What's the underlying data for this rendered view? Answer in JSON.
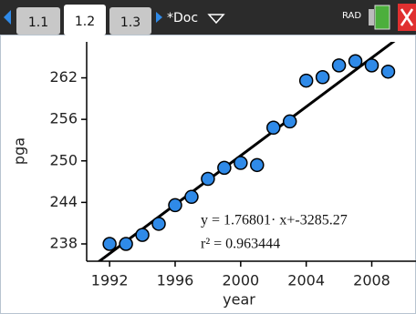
{
  "tabs": [
    "1.1",
    "1.2",
    "1.3"
  ],
  "document": "*Doc",
  "mode": "RAD",
  "chart_data": {
    "type": "scatter",
    "x_label": "year",
    "y_label": "pga",
    "x": [
      1992,
      1993,
      1994,
      1995,
      1996,
      1997,
      1998,
      1999,
      2000,
      2001,
      2002,
      2003,
      2004,
      2005,
      2006,
      2007,
      2008,
      2009
    ],
    "y": [
      238.0,
      238.0,
      239.3,
      240.9,
      243.6,
      244.8,
      247.4,
      249.0,
      249.7,
      249.4,
      254.8,
      255.7,
      261.6,
      262.1,
      263.8,
      264.4,
      263.8,
      262.9
    ],
    "color": "#2f8ae8",
    "xlim": [
      1990.6,
      2010.7
    ],
    "xticks": [
      1992,
      1996,
      2000,
      2004,
      2008
    ],
    "ylim": [
      235.5,
      267.2
    ],
    "yticks": [
      238,
      244,
      250,
      256,
      262
    ],
    "regression": {
      "slope": 1.76801,
      "intercept": -3285.27,
      "label": "y = 1.76801· x+-3285.27",
      "r2": 0.963444,
      "r2_label": "r² = 0.963444"
    }
  }
}
